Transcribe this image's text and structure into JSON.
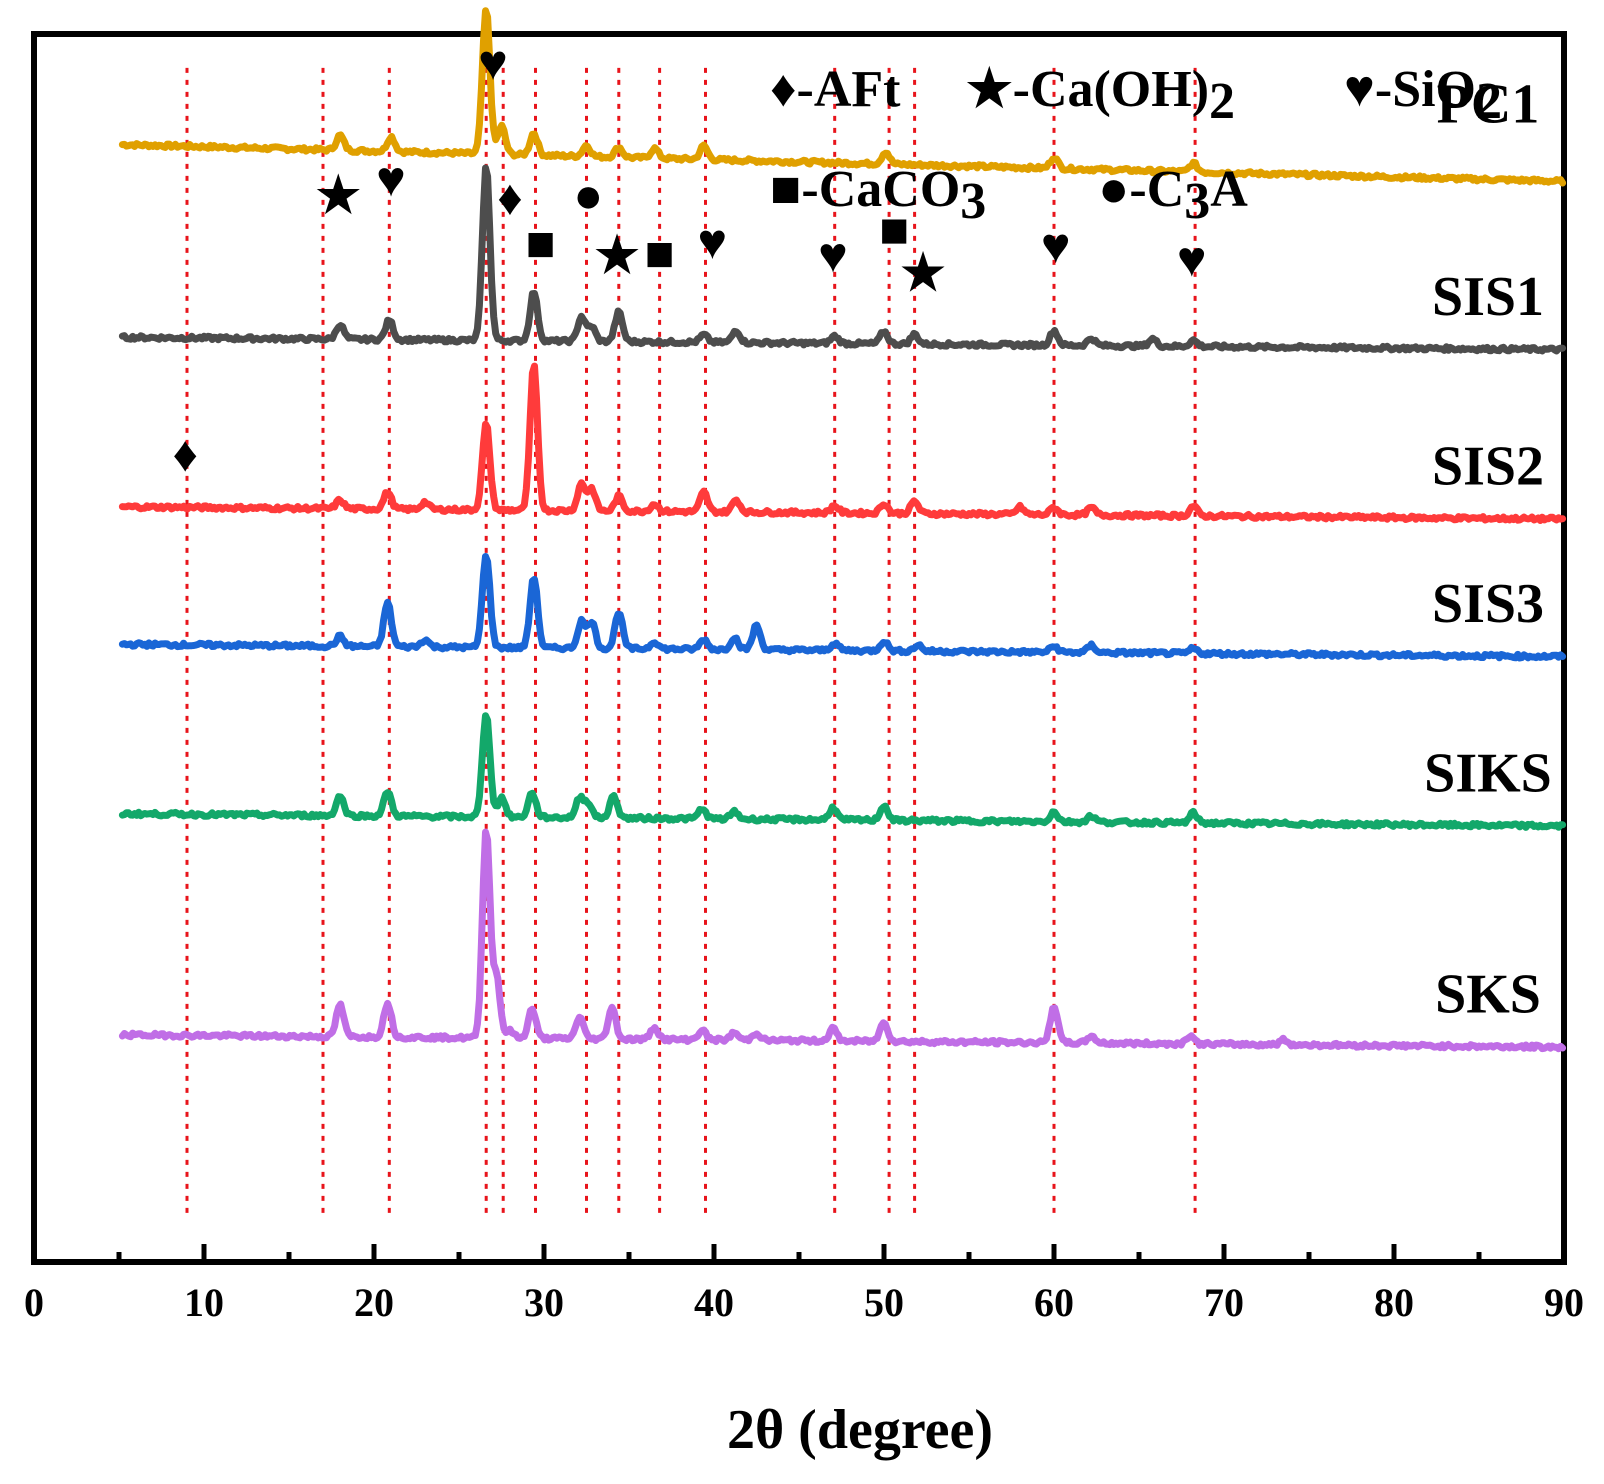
{
  "chart_data": {
    "type": "line",
    "title": "",
    "xlabel": "2θ (degree)",
    "ylabel": "",
    "xlim": [
      0,
      90
    ],
    "x_ticks": [
      "0",
      "10",
      "20",
      "30",
      "40",
      "50",
      "60",
      "70",
      "80",
      "90"
    ],
    "y_ticks_shown": false,
    "grid": false,
    "series": [
      {
        "name": "PC1",
        "color": "#e0a000",
        "base": 0.91,
        "slope": 0.03,
        "peaks": [
          [
            18.0,
            0.012
          ],
          [
            21.0,
            0.012
          ],
          [
            26.6,
            0.118
          ],
          [
            27.5,
            0.023
          ],
          [
            29.4,
            0.018
          ],
          [
            32.5,
            0.009
          ],
          [
            34.4,
            0.008
          ],
          [
            36.5,
            0.008
          ],
          [
            39.4,
            0.011
          ],
          [
            50.1,
            0.01
          ],
          [
            60.0,
            0.009
          ],
          [
            68.2,
            0.007
          ]
        ]
      },
      {
        "name": "SIS1",
        "color": "#4d4d4d",
        "base": 0.753,
        "slope": 0.01,
        "peaks": [
          [
            18.0,
            0.012
          ],
          [
            20.9,
            0.016
          ],
          [
            26.6,
            0.142
          ],
          [
            29.4,
            0.04
          ],
          [
            32.2,
            0.02
          ],
          [
            32.8,
            0.012
          ],
          [
            34.4,
            0.024
          ],
          [
            39.4,
            0.006
          ],
          [
            41.3,
            0.01
          ],
          [
            47.1,
            0.006
          ],
          [
            50.0,
            0.01
          ],
          [
            51.8,
            0.008
          ],
          [
            60.0,
            0.012
          ],
          [
            62.2,
            0.006
          ],
          [
            65.8,
            0.006
          ],
          [
            68.2,
            0.005
          ]
        ]
      },
      {
        "name": "SIS2",
        "color": "#ff3b3b",
        "base": 0.615,
        "slope": 0.01,
        "peaks": [
          [
            18.0,
            0.007
          ],
          [
            20.8,
            0.014
          ],
          [
            23.0,
            0.006
          ],
          [
            26.6,
            0.07
          ],
          [
            29.4,
            0.118
          ],
          [
            32.2,
            0.022
          ],
          [
            32.8,
            0.018
          ],
          [
            34.4,
            0.012
          ],
          [
            36.5,
            0.006
          ],
          [
            39.4,
            0.016
          ],
          [
            41.3,
            0.01
          ],
          [
            47.1,
            0.006
          ],
          [
            50.0,
            0.008
          ],
          [
            51.8,
            0.01
          ],
          [
            58.0,
            0.006
          ],
          [
            60.0,
            0.006
          ],
          [
            62.2,
            0.006
          ],
          [
            68.2,
            0.008
          ]
        ]
      },
      {
        "name": "SIS3",
        "color": "#1a66d6",
        "base": 0.503,
        "slope": 0.01,
        "peaks": [
          [
            18.0,
            0.008
          ],
          [
            20.8,
            0.036
          ],
          [
            23.0,
            0.006
          ],
          [
            26.6,
            0.076
          ],
          [
            29.4,
            0.058
          ],
          [
            32.2,
            0.022
          ],
          [
            32.8,
            0.022
          ],
          [
            34.4,
            0.03
          ],
          [
            36.5,
            0.006
          ],
          [
            39.4,
            0.008
          ],
          [
            41.2,
            0.01
          ],
          [
            42.5,
            0.02
          ],
          [
            47.1,
            0.006
          ],
          [
            50.0,
            0.008
          ],
          [
            52.0,
            0.005
          ],
          [
            60.0,
            0.005
          ],
          [
            62.2,
            0.006
          ],
          [
            68.2,
            0.004
          ]
        ]
      },
      {
        "name": "SIKS",
        "color": "#13a86a",
        "base": 0.365,
        "slope": 0.01,
        "peaks": [
          [
            18.0,
            0.016
          ],
          [
            20.8,
            0.02
          ],
          [
            26.6,
            0.085
          ],
          [
            27.5,
            0.016
          ],
          [
            29.3,
            0.02
          ],
          [
            32.1,
            0.016
          ],
          [
            32.6,
            0.012
          ],
          [
            34.1,
            0.018
          ],
          [
            39.3,
            0.008
          ],
          [
            41.2,
            0.006
          ],
          [
            47.0,
            0.01
          ],
          [
            50.0,
            0.012
          ],
          [
            60.0,
            0.008
          ],
          [
            62.2,
            0.005
          ],
          [
            68.2,
            0.008
          ]
        ]
      },
      {
        "name": "SKS",
        "color": "#c06ee6",
        "base": 0.185,
        "slope": 0.01,
        "peaks": [
          [
            18.0,
            0.026
          ],
          [
            20.8,
            0.028
          ],
          [
            26.6,
            0.17
          ],
          [
            27.2,
            0.05
          ],
          [
            28.0,
            0.006
          ],
          [
            29.3,
            0.024
          ],
          [
            32.1,
            0.018
          ],
          [
            34.0,
            0.026
          ],
          [
            36.5,
            0.01
          ],
          [
            39.3,
            0.008
          ],
          [
            41.2,
            0.006
          ],
          [
            42.5,
            0.006
          ],
          [
            47.0,
            0.01
          ],
          [
            50.0,
            0.016
          ],
          [
            60.0,
            0.03
          ],
          [
            62.2,
            0.006
          ],
          [
            68.0,
            0.007
          ],
          [
            73.5,
            0.004
          ]
        ]
      }
    ],
    "reference_lines_x": [
      9.0,
      17.0,
      20.9,
      26.6,
      27.6,
      29.5,
      32.5,
      34.4,
      36.8,
      39.5,
      47.1,
      50.3,
      51.8,
      60.0,
      68.3
    ],
    "phase_markers": [
      {
        "phase": "AFt",
        "glyph": "♦",
        "x": 8.9,
        "level": 0.644
      },
      {
        "phase": "Ca(OH)2",
        "glyph": "★",
        "x": 17.9,
        "level": 0.855
      },
      {
        "phase": "SiO2",
        "glyph": "♥",
        "x": 21.0,
        "level": 0.868
      },
      {
        "phase": "SiO2",
        "glyph": "♥",
        "x": 27.0,
        "level": 0.963
      },
      {
        "phase": "AFt",
        "glyph": "♦",
        "x": 28.0,
        "level": 0.853
      },
      {
        "phase": "CaCO3",
        "glyph": "■",
        "x": 29.8,
        "level": 0.816
      },
      {
        "phase": "C3A",
        "glyph": "●",
        "x": 32.6,
        "level": 0.855
      },
      {
        "phase": "Ca(OH)2",
        "glyph": "★",
        "x": 34.3,
        "level": 0.806
      },
      {
        "phase": "CaCO3",
        "glyph": "■",
        "x": 36.8,
        "level": 0.808
      },
      {
        "phase": "SiO2",
        "glyph": "♥",
        "x": 39.9,
        "level": 0.817
      },
      {
        "phase": "SiO2",
        "glyph": "♥",
        "x": 47.0,
        "level": 0.806
      },
      {
        "phase": "CaCO3",
        "glyph": "■",
        "x": 50.6,
        "level": 0.827
      },
      {
        "phase": "Ca(OH)2",
        "glyph": "★",
        "x": 52.3,
        "level": 0.792
      },
      {
        "phase": "SiO2",
        "glyph": "♥",
        "x": 60.1,
        "level": 0.814
      },
      {
        "phase": "SiO2",
        "glyph": "♥",
        "x": 68.1,
        "level": 0.803
      }
    ],
    "legend": {
      "placement": "top-right",
      "row1": [
        {
          "glyph": "♦",
          "label": "-AFt"
        },
        {
          "glyph": "★",
          "label": "-Ca(OH)",
          "sub": "2"
        },
        {
          "glyph": "♥",
          "label": "-SiO",
          "sub": "2"
        }
      ],
      "row2": [
        {
          "glyph": "■",
          "label": "-CaCO",
          "sub": "3"
        },
        {
          "glyph": "●",
          "label": "-C",
          "sub": "3",
          "after": "A"
        }
      ]
    }
  }
}
